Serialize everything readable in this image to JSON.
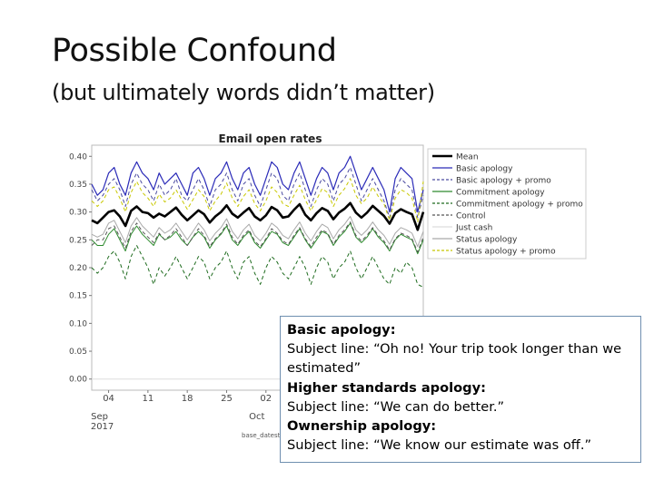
{
  "slide": {
    "title": "Possible Confound",
    "subtitle": "(but ultimately words didn’t matter)"
  },
  "callout": {
    "items": [
      {
        "heading": "Basic apology:",
        "subject": "Subject line: “Oh no! Your trip took longer than we estimated”"
      },
      {
        "heading": "Higher standards apology:",
        "subject": "Subject line: “We can do better.”"
      },
      {
        "heading": "Ownership apology:",
        "subject": "Subject line: “We know our estimate was off.”"
      }
    ]
  },
  "chart_data": {
    "type": "line",
    "title": "Email open rates",
    "xlabel": "base_datestr",
    "ylabel": "",
    "ylim": [
      -0.02,
      0.42
    ],
    "yticks": [
      "0.00",
      "0.05",
      "0.10",
      "0.15",
      "0.20",
      "0.25",
      "0.30",
      "0.35",
      "0.40"
    ],
    "xticks": [
      {
        "label": "04",
        "sub": "Sep",
        "sub2": "2017",
        "day": 4
      },
      {
        "label": "11",
        "day": 11
      },
      {
        "label": "18",
        "day": 18
      },
      {
        "label": "25",
        "day": 25
      },
      {
        "label": "02",
        "sub": "Oct",
        "day": 32
      }
    ],
    "x_start_day": 1,
    "x_end_day": 60,
    "legend_position": "right",
    "series": [
      {
        "name": "Mean",
        "color": "#000000",
        "width": 2.6,
        "dash": "",
        "values": [
          0.285,
          0.28,
          0.29,
          0.3,
          0.303,
          0.292,
          0.275,
          0.302,
          0.31,
          0.3,
          0.298,
          0.29,
          0.297,
          0.292,
          0.3,
          0.308,
          0.295,
          0.285,
          0.294,
          0.303,
          0.296,
          0.281,
          0.292,
          0.3,
          0.312,
          0.297,
          0.29,
          0.299,
          0.307,
          0.292,
          0.285,
          0.294,
          0.309,
          0.303,
          0.29,
          0.292,
          0.304,
          0.314,
          0.295,
          0.285,
          0.298,
          0.307,
          0.302,
          0.287,
          0.299,
          0.306,
          0.316,
          0.299,
          0.29,
          0.299,
          0.311,
          0.302,
          0.293,
          0.279,
          0.298,
          0.305,
          0.3,
          0.296,
          0.268,
          0.3
        ]
      },
      {
        "name": "Basic apology",
        "color": "#2b2bb8",
        "width": 1.2,
        "dash": "",
        "values": [
          0.35,
          0.33,
          0.34,
          0.37,
          0.38,
          0.35,
          0.33,
          0.37,
          0.39,
          0.37,
          0.36,
          0.34,
          0.37,
          0.35,
          0.36,
          0.37,
          0.35,
          0.33,
          0.37,
          0.38,
          0.36,
          0.33,
          0.36,
          0.37,
          0.39,
          0.36,
          0.34,
          0.37,
          0.38,
          0.35,
          0.33,
          0.36,
          0.39,
          0.38,
          0.35,
          0.34,
          0.37,
          0.39,
          0.36,
          0.33,
          0.36,
          0.38,
          0.37,
          0.34,
          0.37,
          0.38,
          0.4,
          0.37,
          0.34,
          0.36,
          0.38,
          0.36,
          0.34,
          0.3,
          0.36,
          0.38,
          0.37,
          0.36,
          0.3,
          0.34
        ]
      },
      {
        "name": "Basic apology + promo",
        "color": "#4a4aa0",
        "width": 1.0,
        "dash": "4,3",
        "values": [
          0.34,
          0.32,
          0.33,
          0.35,
          0.36,
          0.34,
          0.31,
          0.35,
          0.37,
          0.35,
          0.34,
          0.32,
          0.35,
          0.33,
          0.34,
          0.36,
          0.33,
          0.32,
          0.34,
          0.36,
          0.34,
          0.31,
          0.34,
          0.35,
          0.37,
          0.34,
          0.32,
          0.35,
          0.36,
          0.33,
          0.31,
          0.34,
          0.37,
          0.36,
          0.33,
          0.32,
          0.35,
          0.37,
          0.34,
          0.31,
          0.34,
          0.36,
          0.35,
          0.32,
          0.35,
          0.36,
          0.38,
          0.35,
          0.32,
          0.34,
          0.36,
          0.34,
          0.32,
          0.29,
          0.34,
          0.36,
          0.35,
          0.34,
          0.29,
          0.33
        ]
      },
      {
        "name": "Commitment apology",
        "color": "#2e8b2e",
        "width": 1.0,
        "dash": "",
        "values": [
          0.25,
          0.24,
          0.24,
          0.26,
          0.27,
          0.25,
          0.23,
          0.26,
          0.275,
          0.26,
          0.25,
          0.24,
          0.26,
          0.25,
          0.255,
          0.265,
          0.25,
          0.24,
          0.255,
          0.265,
          0.255,
          0.235,
          0.25,
          0.26,
          0.275,
          0.25,
          0.24,
          0.255,
          0.265,
          0.245,
          0.235,
          0.25,
          0.265,
          0.26,
          0.245,
          0.24,
          0.255,
          0.27,
          0.25,
          0.235,
          0.25,
          0.265,
          0.26,
          0.24,
          0.255,
          0.265,
          0.28,
          0.255,
          0.245,
          0.255,
          0.27,
          0.255,
          0.245,
          0.23,
          0.25,
          0.26,
          0.255,
          0.25,
          0.225,
          0.25
        ]
      },
      {
        "name": "Commitment apology + promo",
        "color": "#1e6b1e",
        "width": 1.0,
        "dash": "4,3",
        "values": [
          0.2,
          0.19,
          0.2,
          0.22,
          0.23,
          0.21,
          0.18,
          0.22,
          0.24,
          0.22,
          0.2,
          0.17,
          0.2,
          0.185,
          0.2,
          0.22,
          0.2,
          0.18,
          0.2,
          0.22,
          0.21,
          0.18,
          0.2,
          0.21,
          0.23,
          0.2,
          0.18,
          0.21,
          0.22,
          0.19,
          0.17,
          0.2,
          0.22,
          0.21,
          0.19,
          0.18,
          0.2,
          0.22,
          0.2,
          0.17,
          0.2,
          0.22,
          0.21,
          0.18,
          0.2,
          0.21,
          0.23,
          0.2,
          0.18,
          0.2,
          0.22,
          0.2,
          0.18,
          0.17,
          0.2,
          0.19,
          0.21,
          0.2,
          0.17,
          0.165
        ]
      },
      {
        "name": "Control",
        "color": "#555555",
        "width": 1.0,
        "dash": "4,3",
        "values": [
          0.24,
          0.25,
          0.25,
          0.27,
          0.275,
          0.255,
          0.235,
          0.265,
          0.28,
          0.265,
          0.255,
          0.245,
          0.262,
          0.25,
          0.258,
          0.27,
          0.255,
          0.24,
          0.255,
          0.27,
          0.258,
          0.238,
          0.252,
          0.262,
          0.278,
          0.255,
          0.242,
          0.258,
          0.268,
          0.248,
          0.238,
          0.252,
          0.27,
          0.262,
          0.248,
          0.242,
          0.258,
          0.272,
          0.252,
          0.238,
          0.255,
          0.268,
          0.262,
          0.242,
          0.258,
          0.268,
          0.282,
          0.258,
          0.248,
          0.258,
          0.272,
          0.258,
          0.248,
          0.232,
          0.252,
          0.262,
          0.258,
          0.252,
          0.228,
          0.255
        ]
      },
      {
        "name": "Just cash",
        "color": "#dddddd",
        "width": 1.0,
        "dash": "",
        "values": [
          0.0,
          0.0,
          0.0,
          0.0,
          0.0,
          0.0,
          0.0,
          0.0,
          0.0,
          0.0,
          0.0,
          0.0,
          0.0,
          0.0,
          0.0,
          0.0,
          0.0,
          0.0,
          0.0,
          0.0,
          0.0,
          0.0,
          0.0,
          0.0,
          0.0,
          0.0,
          0.0,
          0.0,
          0.0,
          0.0,
          0.0,
          0.0,
          0.0,
          0.0,
          0.0,
          0.0,
          0.0,
          0.0,
          0.0,
          0.0,
          0.0,
          0.0,
          0.0,
          0.0,
          0.0,
          0.0,
          0.0,
          0.0,
          0.0,
          0.0,
          0.0,
          0.0,
          0.0,
          0.0,
          0.0,
          0.0,
          0.0,
          0.0,
          0.0,
          0.0
        ]
      },
      {
        "name": "Status apology",
        "color": "#a9a9a9",
        "width": 1.0,
        "dash": "",
        "values": [
          0.26,
          0.255,
          0.26,
          0.28,
          0.285,
          0.265,
          0.245,
          0.275,
          0.29,
          0.275,
          0.265,
          0.255,
          0.272,
          0.262,
          0.268,
          0.28,
          0.265,
          0.25,
          0.265,
          0.28,
          0.268,
          0.248,
          0.262,
          0.272,
          0.288,
          0.265,
          0.252,
          0.268,
          0.278,
          0.258,
          0.248,
          0.262,
          0.28,
          0.272,
          0.258,
          0.252,
          0.268,
          0.282,
          0.262,
          0.248,
          0.265,
          0.278,
          0.272,
          0.252,
          0.268,
          0.278,
          0.292,
          0.268,
          0.258,
          0.268,
          0.282,
          0.268,
          0.258,
          0.242,
          0.262,
          0.272,
          0.268,
          0.262,
          0.238,
          0.265
        ]
      },
      {
        "name": "Status apology + promo",
        "color": "#c8c800",
        "width": 1.0,
        "dash": "4,3",
        "values": [
          0.32,
          0.31,
          0.32,
          0.34,
          0.345,
          0.325,
          0.3,
          0.335,
          0.355,
          0.335,
          0.325,
          0.31,
          0.332,
          0.318,
          0.325,
          0.34,
          0.322,
          0.305,
          0.322,
          0.34,
          0.328,
          0.302,
          0.32,
          0.332,
          0.352,
          0.325,
          0.31,
          0.328,
          0.34,
          0.315,
          0.302,
          0.32,
          0.345,
          0.335,
          0.315,
          0.31,
          0.33,
          0.348,
          0.322,
          0.302,
          0.322,
          0.342,
          0.335,
          0.31,
          0.33,
          0.342,
          0.36,
          0.33,
          0.315,
          0.325,
          0.345,
          0.328,
          0.315,
          0.285,
          0.325,
          0.34,
          0.335,
          0.325,
          0.282,
          0.355
        ]
      }
    ]
  }
}
